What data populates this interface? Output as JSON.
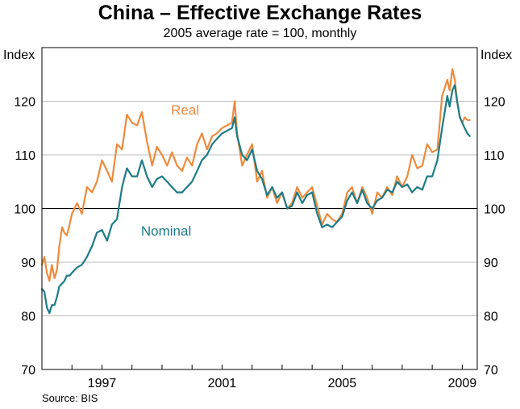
{
  "chart_data": {
    "type": "line",
    "title": "China – Effective Exchange Rates",
    "subtitle": "2005 average rate = 100, monthly",
    "ylabel_left": "Index",
    "ylabel_right": "Index",
    "ylim": [
      70,
      130
    ],
    "yticks": [
      70,
      80,
      90,
      100,
      110,
      120
    ],
    "xlim": [
      1995.0,
      2009.5
    ],
    "xticks": [
      1997,
      2001,
      2005,
      2009
    ],
    "xtick_labels": [
      "1997",
      "2001",
      "2005",
      "2009"
    ],
    "reference_line": 100,
    "grid": true,
    "source": "Source: BIS",
    "series": [
      {
        "name": "Real",
        "color": "#ee8a3c",
        "x": [
          1995.0,
          1995.08,
          1995.17,
          1995.25,
          1995.33,
          1995.42,
          1995.5,
          1995.58,
          1995.67,
          1995.75,
          1995.83,
          1995.92,
          1996.0,
          1996.17,
          1996.33,
          1996.5,
          1996.67,
          1996.83,
          1997.0,
          1997.17,
          1997.33,
          1997.5,
          1997.67,
          1997.83,
          1998.0,
          1998.17,
          1998.33,
          1998.5,
          1998.67,
          1998.83,
          1999.0,
          1999.17,
          1999.33,
          1999.5,
          1999.67,
          1999.83,
          2000.0,
          2000.17,
          2000.33,
          2000.5,
          2000.67,
          2000.83,
          2001.0,
          2001.17,
          2001.33,
          2001.42,
          2001.5,
          2001.67,
          2001.83,
          2002.0,
          2002.17,
          2002.33,
          2002.5,
          2002.67,
          2002.83,
          2003.0,
          2003.17,
          2003.33,
          2003.5,
          2003.67,
          2003.83,
          2004.0,
          2004.17,
          2004.33,
          2004.5,
          2004.67,
          2004.83,
          2005.0,
          2005.17,
          2005.33,
          2005.5,
          2005.67,
          2005.83,
          2006.0,
          2006.17,
          2006.33,
          2006.5,
          2006.67,
          2006.83,
          2007.0,
          2007.17,
          2007.33,
          2007.5,
          2007.67,
          2007.83,
          2008.0,
          2008.17,
          2008.33,
          2008.5,
          2008.58,
          2008.67,
          2008.75,
          2008.83,
          2008.92,
          2009.0,
          2009.08,
          2009.17,
          2009.25
        ],
        "values": [
          89.5,
          91,
          88,
          86.5,
          89.5,
          87,
          88.5,
          93,
          96.5,
          95.5,
          95,
          97,
          99,
          101,
          99,
          104,
          103,
          105,
          109,
          107,
          105,
          112,
          111,
          117.5,
          116,
          115.5,
          118,
          112.5,
          108,
          111.5,
          110,
          108,
          110.5,
          108,
          107,
          109.5,
          108,
          112,
          114,
          111,
          113.5,
          114,
          115,
          115.5,
          116,
          120,
          114,
          108,
          110,
          112,
          105,
          107,
          102,
          104,
          101,
          103,
          100,
          101,
          104,
          102,
          103,
          104,
          100.5,
          97,
          99,
          98,
          97.5,
          99,
          103,
          104,
          101,
          104,
          102,
          99,
          103,
          102,
          104,
          102.5,
          106,
          104,
          106,
          110,
          107.5,
          108,
          112,
          110.5,
          111,
          121,
          124,
          122,
          126,
          124,
          120,
          117,
          116,
          117,
          116.5,
          116.5
        ]
      },
      {
        "name": "Nominal",
        "color": "#1d7b86",
        "x": [
          1995.0,
          1995.08,
          1995.17,
          1995.25,
          1995.33,
          1995.42,
          1995.5,
          1995.58,
          1995.67,
          1995.75,
          1995.83,
          1995.92,
          1996.0,
          1996.17,
          1996.33,
          1996.5,
          1996.67,
          1996.83,
          1997.0,
          1997.17,
          1997.33,
          1997.5,
          1997.67,
          1997.83,
          1998.0,
          1998.17,
          1998.33,
          1998.5,
          1998.67,
          1998.83,
          1999.0,
          1999.17,
          1999.33,
          1999.5,
          1999.67,
          1999.83,
          2000.0,
          2000.17,
          2000.33,
          2000.5,
          2000.67,
          2000.83,
          2001.0,
          2001.17,
          2001.33,
          2001.42,
          2001.5,
          2001.67,
          2001.83,
          2002.0,
          2002.17,
          2002.33,
          2002.5,
          2002.67,
          2002.83,
          2003.0,
          2003.17,
          2003.33,
          2003.5,
          2003.67,
          2003.83,
          2004.0,
          2004.17,
          2004.33,
          2004.5,
          2004.67,
          2004.83,
          2005.0,
          2005.17,
          2005.33,
          2005.5,
          2005.67,
          2005.83,
          2006.0,
          2006.17,
          2006.33,
          2006.5,
          2006.67,
          2006.83,
          2007.0,
          2007.17,
          2007.33,
          2007.5,
          2007.67,
          2007.83,
          2008.0,
          2008.17,
          2008.33,
          2008.5,
          2008.58,
          2008.67,
          2008.75,
          2008.83,
          2008.92,
          2009.0,
          2009.08,
          2009.17,
          2009.25
        ],
        "values": [
          85,
          84.5,
          81.5,
          80.5,
          82,
          82,
          83.5,
          85.5,
          86,
          86.5,
          87.5,
          87.5,
          88,
          89,
          89.5,
          91,
          93,
          95.5,
          96,
          94,
          97,
          98,
          104,
          107.5,
          106,
          106,
          109,
          106,
          104,
          105.5,
          106,
          105,
          104,
          103,
          103,
          104,
          105,
          107,
          109,
          110,
          112,
          113,
          114,
          114.5,
          115,
          117,
          113.5,
          110,
          109,
          111,
          107,
          105.5,
          102.5,
          104,
          102,
          103,
          100,
          100.5,
          103,
          101,
          102.5,
          103,
          99,
          96.5,
          97,
          96.5,
          97.5,
          98.5,
          101.5,
          103,
          101,
          103.5,
          101,
          100,
          101.5,
          102,
          103.5,
          103,
          105,
          104,
          104.5,
          103,
          104,
          103.5,
          106,
          106,
          109,
          115,
          121,
          119,
          122,
          123,
          120,
          117,
          116,
          115,
          114,
          113.5
        ]
      }
    ],
    "annotations": [
      {
        "text": "Real",
        "series": "Real",
        "at_x": 1999.3,
        "at_y": 117.5
      },
      {
        "text": "Nominal",
        "series": "Nominal",
        "at_x": 1998.3,
        "at_y": 95
      }
    ]
  }
}
